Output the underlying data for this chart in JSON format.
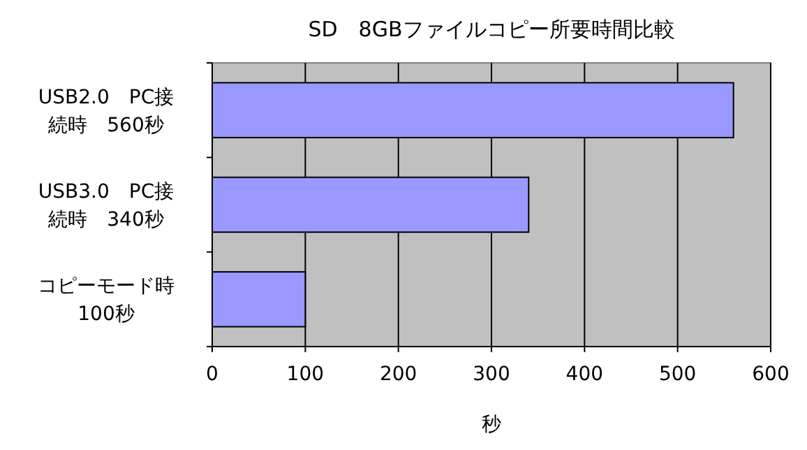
{
  "chart_data": {
    "type": "bar",
    "orientation": "horizontal",
    "title": "SD　8GBファイルコピー所要時間比較",
    "xlabel": "秒",
    "categories": [
      "USB2.0　PC接続時　560秒",
      "USB3.0　PC接続時　340秒",
      "コピーモード時　100秒"
    ],
    "values": [
      560,
      340,
      100
    ],
    "color": "#9999ff",
    "xlim": [
      0,
      600
    ],
    "xticks": [
      0,
      100,
      200,
      300,
      400,
      500,
      600
    ],
    "grid": "x"
  }
}
